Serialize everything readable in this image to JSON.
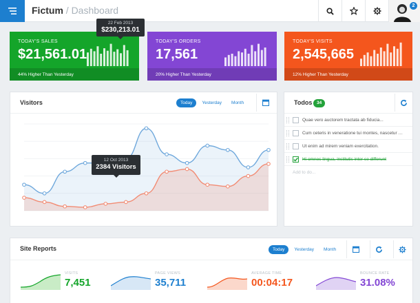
{
  "header": {
    "brand": "Fictum",
    "separator": "/",
    "page": "Dashboard",
    "notification_count": "2"
  },
  "stats": [
    {
      "label": "TODAY'S SALES",
      "value": "$21,561.01",
      "footer": "44% Higher Than Yesterday",
      "color": "#14a52a",
      "bars": [
        0.55,
        0.7,
        0.6,
        0.8,
        0.5,
        0.72,
        0.62,
        0.9,
        0.58,
        0.68,
        0.52,
        0.85,
        0.64
      ]
    },
    {
      "label": "TODAY'S ORDERS",
      "value": "17,561",
      "footer": "20% Higher Than Yesterday",
      "color": "#8346d4",
      "bars": [
        0.35,
        0.45,
        0.5,
        0.4,
        0.6,
        0.55,
        0.7,
        0.5,
        0.85,
        0.6,
        0.9,
        0.65,
        0.75
      ]
    },
    {
      "label": "TODAY'S VISITS",
      "value": "2,545,665",
      "footer": "12% Higher Than Yesterday",
      "color": "#f4561d",
      "bars": [
        0.3,
        0.45,
        0.55,
        0.4,
        0.65,
        0.5,
        0.75,
        0.6,
        0.9,
        0.55,
        0.8,
        0.7,
        0.95
      ]
    }
  ],
  "sales_tooltip": {
    "date": "22 Feb 2013",
    "value": "$230,213.01"
  },
  "visitors": {
    "title": "Visitors",
    "tabs": [
      "Today",
      "Yesterday",
      "Month"
    ],
    "active_tab": "Today",
    "tooltip": {
      "date": "12 Oct 2013",
      "value": "2384 Visitors"
    }
  },
  "chart_data": {
    "type": "area",
    "title": "Visitors",
    "series": [
      {
        "values": [
          30,
          20,
          45,
          55,
          55,
          60,
          95,
          65,
          55,
          75,
          70,
          50,
          70
        ],
        "color": "#6fa8dc"
      },
      {
        "values": [
          15,
          10,
          5,
          4,
          8,
          10,
          20,
          45,
          48,
          30,
          28,
          40,
          54
        ],
        "color": "#f28b73"
      }
    ],
    "ylim": [
      0,
      100
    ],
    "grid": true
  },
  "todos": {
    "title": "Todos",
    "count": "34",
    "items": [
      {
        "text": "Quae vero auctorem tractata ab fiducia...",
        "done": false
      },
      {
        "text": "Cum ceteris in veneratione tui montes, nascetur mus.",
        "done": false
      },
      {
        "text": "Ut enim ad mirem veniam exercitation.",
        "done": false
      },
      {
        "text": "Hi omnes lingua, institutis inter se differunt",
        "done": true
      }
    ],
    "add_placeholder": "Add to do..."
  },
  "site_reports": {
    "title": "Site Reports",
    "tabs": [
      "Today",
      "Yesterday",
      "Month"
    ],
    "active_tab": "Today",
    "metrics": [
      {
        "label": "VISITS",
        "value": "7,451",
        "color": "#14a52a",
        "fill": "#c9ecc6"
      },
      {
        "label": "PAGE VIEWS",
        "value": "35,711",
        "color": "#1d7fcf",
        "fill": "#d7e7f6"
      },
      {
        "label": "AVERAGE TIME",
        "value": "00:04:17",
        "color": "#f4561d",
        "fill": "#fbd8cb"
      },
      {
        "label": "BOUNCE RATE",
        "value": "31.08%",
        "color": "#8346d4",
        "fill": "#e0d3f4"
      }
    ]
  },
  "icons": {
    "menu": "hamburger-icon",
    "search": "search-icon",
    "star": "star-icon",
    "settings": "gear-icon",
    "calendar": "calendar-icon",
    "refresh": "refresh-icon"
  }
}
